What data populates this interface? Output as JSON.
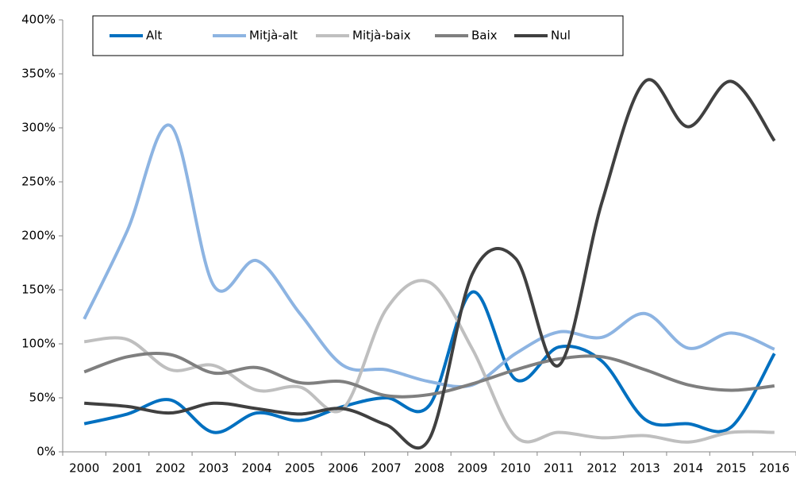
{
  "chart_data": {
    "type": "line",
    "categories": [
      "2000",
      "2001",
      "2002",
      "2003",
      "2004",
      "2005",
      "2006",
      "2007",
      "2008",
      "2009",
      "2010",
      "2011",
      "2012",
      "2013",
      "2014",
      "2015",
      "2016"
    ],
    "series": [
      {
        "name": "Alt",
        "color": "#0070c0",
        "values": [
          26,
          35,
          48,
          18,
          36,
          29,
          42,
          50,
          43,
          148,
          67,
          97,
          84,
          30,
          26,
          23,
          91
        ]
      },
      {
        "name": "Mitjà-alt",
        "color": "#8db4e2",
        "values": [
          123,
          205,
          302,
          154,
          177,
          128,
          80,
          76,
          65,
          62,
          91,
          111,
          106,
          128,
          96,
          110,
          95
        ]
      },
      {
        "name": "Mitjà-baix",
        "color": "#bfbfbf",
        "values": [
          102,
          104,
          76,
          80,
          57,
          60,
          40,
          132,
          157,
          95,
          14,
          18,
          13,
          15,
          9,
          18,
          18
        ]
      },
      {
        "name": "Baix",
        "color": "#7f7f7f",
        "values": [
          74,
          88,
          90,
          73,
          78,
          64,
          65,
          52,
          53,
          63,
          76,
          86,
          88,
          76,
          62,
          57,
          61
        ]
      },
      {
        "name": "Nul",
        "color": "#404040",
        "values": [
          45,
          42,
          36,
          45,
          40,
          35,
          40,
          25,
          12,
          165,
          179,
          80,
          231,
          343,
          301,
          343,
          288
        ]
      }
    ],
    "ylim": [
      0,
      400
    ],
    "yticks": [
      {
        "value": 0,
        "label": "0%"
      },
      {
        "value": 50,
        "label": "50%"
      },
      {
        "value": 100,
        "label": "100%"
      },
      {
        "value": 150,
        "label": "150%"
      },
      {
        "value": 200,
        "label": "200%"
      },
      {
        "value": 250,
        "label": "250%"
      },
      {
        "value": 300,
        "label": "300%"
      },
      {
        "value": 350,
        "label": "350%"
      },
      {
        "value": 400,
        "label": "400%"
      }
    ],
    "grid": false,
    "legend": "top"
  }
}
